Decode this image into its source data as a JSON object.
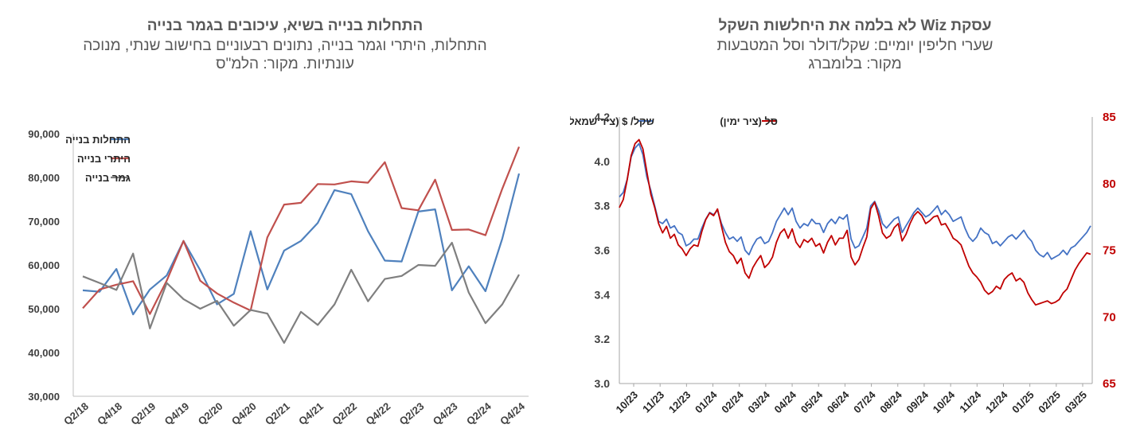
{
  "left": {
    "title": "התחלות בנייה בשיא, עיכובים בגמר בנייה",
    "subtitle_line1": "התחלות, היתרי וגמר בנייה, נתונים רבעוניים בחישוב שנתי,  מנוכה",
    "subtitle_line2": "עונתיות. מקור: הלמ\"ס"
  },
  "right": {
    "title": "עסקת Wiz לא בלמה את היחלשות השקל",
    "subtitle_line1": "שערי חליפין יומיים: שקל/דולר וסל המטבעות",
    "subtitle_line2": "מקור: בלומברג"
  },
  "chart_data": [
    {
      "type": "line",
      "categories": [
        "Q2/18",
        "Q3/18",
        "Q4/18",
        "Q1/19",
        "Q2/19",
        "Q3/19",
        "Q4/19",
        "Q1/20",
        "Q2/20",
        "Q3/20",
        "Q4/20",
        "Q1/21",
        "Q2/21",
        "Q3/21",
        "Q4/21",
        "Q1/22",
        "Q2/22",
        "Q3/22",
        "Q4/22",
        "Q1/23",
        "Q2/23",
        "Q3/23",
        "Q4/23",
        "Q1/24",
        "Q2/24",
        "Q3/24",
        "Q4/24"
      ],
      "tick_labels": [
        "Q2/18",
        "Q4/18",
        "Q2/19",
        "Q4/19",
        "Q2/20",
        "Q4/20",
        "Q2/21",
        "Q4/21",
        "Q2/22",
        "Q4/22",
        "Q2/23",
        "Q4/23",
        "Q2/24",
        "Q4/24"
      ],
      "ylim": [
        30000,
        90000
      ],
      "yticks": [
        "30,000",
        "40,000",
        "50,000",
        "60,000",
        "70,000",
        "80,000",
        "90,000"
      ],
      "grid": false,
      "legend_position": "top-left",
      "series": [
        {
          "name": "התחלות בנייה",
          "color": "#4f81bd",
          "values": [
            54200,
            53900,
            59100,
            48700,
            54400,
            57600,
            65500,
            58800,
            51000,
            53400,
            67700,
            54400,
            63300,
            65500,
            69600,
            77100,
            76200,
            67700,
            61000,
            60800,
            72200,
            72700,
            54200,
            59700,
            54000,
            66000,
            80900
          ]
        },
        {
          "name": "היתרי בנייה",
          "color": "#c0504d",
          "values": [
            50100,
            54400,
            55500,
            56300,
            48800,
            56400,
            65500,
            56400,
            53500,
            51400,
            49600,
            66300,
            73800,
            74200,
            78500,
            78400,
            79100,
            78800,
            83500,
            73000,
            72500,
            79500,
            68000,
            68100,
            66800,
            77400,
            87000
          ]
        },
        {
          "name": "גמר בנייה",
          "color": "#7f7f7f",
          "values": [
            57400,
            55900,
            54300,
            62600,
            45500,
            55900,
            52200,
            50000,
            51800,
            46100,
            49700,
            48900,
            42200,
            49300,
            46300,
            51000,
            58900,
            51700,
            56800,
            57500,
            60000,
            59800,
            65100,
            53700,
            46700,
            51000,
            57800
          ]
        }
      ]
    },
    {
      "type": "line",
      "dual_axis": true,
      "x_tick_labels": [
        "10/23",
        "11/23",
        "12/23",
        "01/24",
        "02/24",
        "03/24",
        "04/24",
        "05/24",
        "06/24",
        "07/24",
        "08/24",
        "09/24",
        "10/24",
        "11/24",
        "12/24",
        "01/25",
        "02/25",
        "03/25"
      ],
      "y_left": {
        "lim": [
          3.0,
          4.2
        ],
        "ticks": [
          "3.0",
          "3.2",
          "3.4",
          "3.6",
          "3.8",
          "4.0",
          "4.2"
        ]
      },
      "y_right": {
        "lim": [
          65,
          85
        ],
        "ticks": [
          "65",
          "70",
          "75",
          "80",
          "85"
        ],
        "color": "#c00000"
      },
      "legend_position": "top",
      "series": [
        {
          "name": "שקל/ $ (ציר שמאל)",
          "color": "#4472c4",
          "axis": "left",
          "values": [
            3.84,
            3.86,
            3.92,
            4.02,
            4.06,
            4.08,
            4.03,
            3.93,
            3.87,
            3.8,
            3.73,
            3.72,
            3.74,
            3.7,
            3.71,
            3.68,
            3.67,
            3.62,
            3.63,
            3.65,
            3.65,
            3.7,
            3.74,
            3.77,
            3.76,
            3.78,
            3.72,
            3.68,
            3.65,
            3.66,
            3.64,
            3.66,
            3.6,
            3.58,
            3.62,
            3.65,
            3.66,
            3.63,
            3.64,
            3.68,
            3.73,
            3.76,
            3.79,
            3.76,
            3.79,
            3.73,
            3.7,
            3.72,
            3.71,
            3.74,
            3.72,
            3.72,
            3.68,
            3.72,
            3.74,
            3.72,
            3.75,
            3.74,
            3.76,
            3.65,
            3.61,
            3.62,
            3.66,
            3.7,
            3.8,
            3.82,
            3.78,
            3.72,
            3.7,
            3.72,
            3.74,
            3.75,
            3.68,
            3.71,
            3.74,
            3.77,
            3.79,
            3.77,
            3.75,
            3.76,
            3.78,
            3.8,
            3.76,
            3.78,
            3.76,
            3.73,
            3.74,
            3.75,
            3.7,
            3.66,
            3.64,
            3.66,
            3.7,
            3.68,
            3.67,
            3.63,
            3.64,
            3.62,
            3.64,
            3.66,
            3.67,
            3.65,
            3.67,
            3.69,
            3.66,
            3.64,
            3.6,
            3.58,
            3.57,
            3.59,
            3.56,
            3.57,
            3.58,
            3.6,
            3.58,
            3.61,
            3.62,
            3.64,
            3.66,
            3.68,
            3.71
          ]
        },
        {
          "name": "סל (ציר ימין)",
          "color": "#c00000",
          "axis": "right",
          "values": [
            78.2,
            78.8,
            80.3,
            82.1,
            83.0,
            83.3,
            82.6,
            80.9,
            79.2,
            78.2,
            77.0,
            76.3,
            76.8,
            75.9,
            76.2,
            75.4,
            75.1,
            74.6,
            75.1,
            75.4,
            75.3,
            76.4,
            77.3,
            77.8,
            77.6,
            78.1,
            76.8,
            75.6,
            74.9,
            74.6,
            74.0,
            74.4,
            73.3,
            72.9,
            73.7,
            74.2,
            74.6,
            73.7,
            74.0,
            74.5,
            75.6,
            76.3,
            76.6,
            75.9,
            76.6,
            75.6,
            75.2,
            75.8,
            75.6,
            75.9,
            75.3,
            75.5,
            74.8,
            75.6,
            76.1,
            75.4,
            75.9,
            75.9,
            76.5,
            74.5,
            73.9,
            74.3,
            75.2,
            76.0,
            78.1,
            78.6,
            77.6,
            76.3,
            75.9,
            76.1,
            76.7,
            77.0,
            75.7,
            76.2,
            77.0,
            77.6,
            77.9,
            77.6,
            77.0,
            77.2,
            77.5,
            77.6,
            76.9,
            77.0,
            76.5,
            75.9,
            75.7,
            75.4,
            74.6,
            73.8,
            73.3,
            73.0,
            72.6,
            72.0,
            71.7,
            71.9,
            72.3,
            72.1,
            72.8,
            73.1,
            73.3,
            72.7,
            72.9,
            72.6,
            71.8,
            71.3,
            70.9,
            71.0,
            71.1,
            71.2,
            71.0,
            71.1,
            71.3,
            71.8,
            72.1,
            72.8,
            73.5,
            74.0,
            74.4,
            74.8,
            74.7
          ]
        }
      ]
    }
  ]
}
